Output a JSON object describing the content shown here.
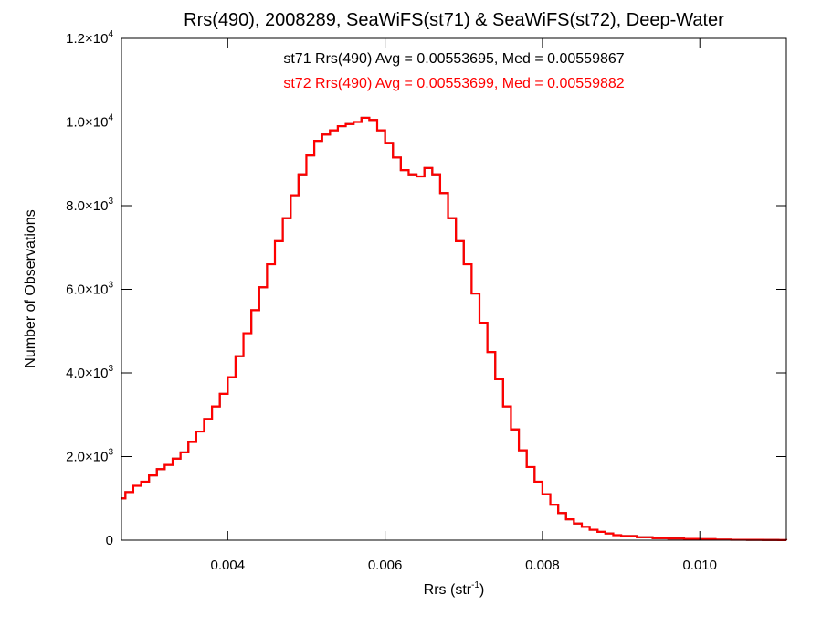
{
  "chart_data": {
    "type": "line",
    "title": "Rrs(490), 2008289, SeaWiFS(st71) & SeaWiFS(st72), Deep-Water",
    "xlabel": {
      "base": "Rrs (str",
      "sup": "-1",
      "close": ")"
    },
    "ylabel": "Number of Observations",
    "xlim": [
      0.00265,
      0.0111
    ],
    "ylim": [
      0,
      12000
    ],
    "grid": false,
    "annotations": [
      {
        "text": "st71 Rrs(490) Avg = 0.00553695, Med = 0.00559867",
        "color": "#000000"
      },
      {
        "text": "st72 Rrs(490) Avg = 0.00553699, Med = 0.00559882",
        "color": "#ff0000"
      }
    ],
    "x_ticks": [
      {
        "value": 0.004,
        "label": "0.004"
      },
      {
        "value": 0.006,
        "label": "0.006"
      },
      {
        "value": 0.008,
        "label": "0.008"
      },
      {
        "value": 0.01,
        "label": "0.010"
      }
    ],
    "y_ticks": [
      {
        "value": 0,
        "mant": "0",
        "exp": ""
      },
      {
        "value": 2000,
        "mant": "2.0×10",
        "exp": "3"
      },
      {
        "value": 4000,
        "mant": "4.0×10",
        "exp": "3"
      },
      {
        "value": 6000,
        "mant": "6.0×10",
        "exp": "3"
      },
      {
        "value": 8000,
        "mant": "8.0×10",
        "exp": "3"
      },
      {
        "value": 10000,
        "mant": "1.0×10",
        "exp": "4"
      },
      {
        "value": 12000,
        "mant": "1.2×10",
        "exp": "4"
      }
    ],
    "series": [
      {
        "color": "#000000",
        "x": [
          0.00265,
          0.0027,
          0.0028,
          0.0029,
          0.003,
          0.0031,
          0.0032,
          0.0033,
          0.0034,
          0.0035,
          0.0036,
          0.0037,
          0.0038,
          0.0039,
          0.004,
          0.0041,
          0.0042,
          0.0043,
          0.0044,
          0.0045,
          0.0046,
          0.0047,
          0.0048,
          0.0049,
          0.005,
          0.0051,
          0.0052,
          0.0053,
          0.0054,
          0.0055,
          0.0056,
          0.0057,
          0.0058,
          0.0059,
          0.006,
          0.0061,
          0.0062,
          0.0063,
          0.0064,
          0.0065,
          0.0066,
          0.0067,
          0.0068,
          0.0069,
          0.007,
          0.0071,
          0.0072,
          0.0073,
          0.0074,
          0.0075,
          0.0076,
          0.0077,
          0.0078,
          0.0079,
          0.008,
          0.0081,
          0.0082,
          0.0083,
          0.0084,
          0.0085,
          0.0086,
          0.0087,
          0.0088,
          0.0089,
          0.009,
          0.0092,
          0.0094,
          0.0096,
          0.0098,
          0.01,
          0.0102,
          0.0104,
          0.0106,
          0.0108,
          0.011,
          0.0111
        ],
        "y": [
          1000,
          1150,
          1300,
          1400,
          1550,
          1700,
          1800,
          1950,
          2100,
          2350,
          2600,
          2900,
          3200,
          3500,
          3900,
          4400,
          4950,
          5500,
          6050,
          6600,
          7150,
          7700,
          8250,
          8750,
          9200,
          9550,
          9700,
          9800,
          9900,
          9950,
          10000,
          10100,
          10050,
          9800,
          9500,
          9150,
          8850,
          8750,
          8700,
          8900,
          8750,
          8300,
          7700,
          7150,
          6600,
          5900,
          5200,
          4500,
          3850,
          3200,
          2650,
          2150,
          1750,
          1400,
          1100,
          850,
          650,
          500,
          400,
          320,
          250,
          200,
          160,
          120,
          100,
          70,
          50,
          40,
          30,
          25,
          15,
          10,
          8,
          5,
          3,
          2
        ]
      },
      {
        "color": "#ff0000",
        "x": [
          0.00265,
          0.0027,
          0.0028,
          0.0029,
          0.003,
          0.0031,
          0.0032,
          0.0033,
          0.0034,
          0.0035,
          0.0036,
          0.0037,
          0.0038,
          0.0039,
          0.004,
          0.0041,
          0.0042,
          0.0043,
          0.0044,
          0.0045,
          0.0046,
          0.0047,
          0.0048,
          0.0049,
          0.005,
          0.0051,
          0.0052,
          0.0053,
          0.0054,
          0.0055,
          0.0056,
          0.0057,
          0.0058,
          0.0059,
          0.006,
          0.0061,
          0.0062,
          0.0063,
          0.0064,
          0.0065,
          0.0066,
          0.0067,
          0.0068,
          0.0069,
          0.007,
          0.0071,
          0.0072,
          0.0073,
          0.0074,
          0.0075,
          0.0076,
          0.0077,
          0.0078,
          0.0079,
          0.008,
          0.0081,
          0.0082,
          0.0083,
          0.0084,
          0.0085,
          0.0086,
          0.0087,
          0.0088,
          0.0089,
          0.009,
          0.0092,
          0.0094,
          0.0096,
          0.0098,
          0.01,
          0.0102,
          0.0104,
          0.0106,
          0.0108,
          0.011,
          0.0111
        ],
        "y": [
          1000,
          1150,
          1300,
          1400,
          1550,
          1700,
          1800,
          1950,
          2100,
          2350,
          2600,
          2900,
          3200,
          3500,
          3900,
          4400,
          4950,
          5500,
          6050,
          6600,
          7150,
          7700,
          8250,
          8750,
          9200,
          9550,
          9700,
          9800,
          9900,
          9950,
          10000,
          10100,
          10050,
          9800,
          9500,
          9150,
          8850,
          8750,
          8700,
          8900,
          8750,
          8300,
          7700,
          7150,
          6600,
          5900,
          5200,
          4500,
          3850,
          3200,
          2650,
          2150,
          1750,
          1400,
          1100,
          850,
          650,
          500,
          400,
          320,
          250,
          200,
          160,
          120,
          100,
          70,
          50,
          40,
          30,
          25,
          15,
          10,
          8,
          5,
          3,
          2
        ]
      }
    ]
  }
}
